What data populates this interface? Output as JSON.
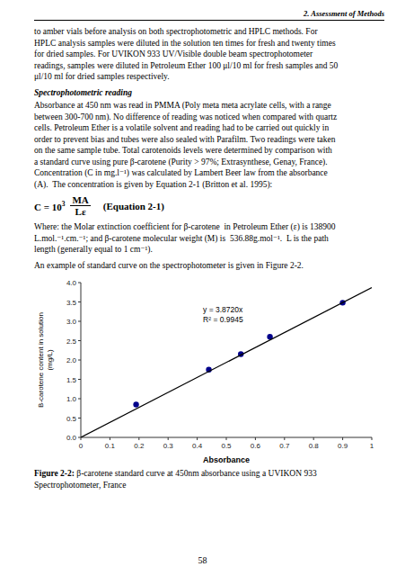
{
  "header": "2. Assessment of Methods",
  "para1": "to amber vials before analysis on both spectrophotometric and HPLC methods. For\nHPLC analysis samples were diluted in the solution ten times for fresh and twenty times\nfor dried samples. For UVIKON 933 UV/Visible double beam spectrophotometer\nreadings, samples were diluted in Petroleum Ether 100 μl/10 ml for fresh samples and 50\nμl/10 ml for dried samples respectively.",
  "section_title": "Spectrophotometric reading",
  "para2": "Absorbance at 450 nm was read in PMMA (Poly meta meta acrylate cells, with a range\nbetween 300-700 nm). No difference of reading was noticed when compared with quartz\ncells. Petroleum Ether is a volatile solvent and reading had to be carried out quickly in\norder to prevent bias and tubes were also sealed with Parafilm. Two readings were taken\non the same sample tube. Total carotenoids levels were determined by comparison with\na standard curve using pure β-carotene (Purity > 97%; Extrasynthese, Genay, France).\nConcentration (C in mg.l⁻¹) was calculated by Lambert Beer law from the absorbance\n(A).  The concentration is given by Equation 2-1 (Britton et al. 1995):",
  "equation": {
    "lhs": "C = 10",
    "sup": "3",
    "num": "MA",
    "den": "Lε",
    "label": "(Equation 2-1)"
  },
  "para3": "Where: the Molar extinction coefficient for β-carotene  in Petroleum Ether (ε) is 138900\nL.mol.⁻¹.cm.⁻¹; and β-carotene molecular weight (M) is  536.88g.mol⁻¹.  L is the path\nlength (generally equal to 1 cm⁻¹).",
  "para4": "An example of standard curve on the spectrophotometer is given in Figure 2-2.",
  "caption": "Figure 2-2: β-carotene standard curve at 450nm absorbance using a UVIKON 933\nSpectrophotometer, France",
  "page_number": "58",
  "chart_data": {
    "type": "scatter",
    "xlabel": "Absorbance",
    "ylabel": "B-carotene content in solution\n(mg/L)",
    "series": [
      {
        "type": "scatter",
        "color": "#00008B",
        "marker": "circle",
        "x": [
          0.19,
          0.44,
          0.55,
          0.65,
          0.9
        ],
        "values": [
          0.85,
          1.75,
          2.15,
          2.6,
          3.48
        ]
      },
      {
        "type": "line",
        "color": "#000000",
        "line_style": "solid",
        "x": [
          0,
          1
        ],
        "values": [
          0,
          3.872
        ]
      }
    ],
    "annotations": [
      "y = 3.8720x",
      "R² = 0.9945"
    ],
    "xlim": [
      0,
      1
    ],
    "ylim": [
      0,
      4
    ],
    "xticks": [
      0,
      0.1,
      0.2,
      0.3,
      0.4,
      0.5,
      0.6,
      0.7,
      0.8,
      0.9,
      1
    ],
    "yticks": [
      {
        "value": 0,
        "label": "0.0"
      },
      0.5,
      {
        "value": 1,
        "label": "1.0"
      },
      1.5,
      {
        "value": 2,
        "label": "2.0"
      },
      2.5,
      {
        "value": 3,
        "label": "3.0"
      },
      3.5,
      {
        "value": 4,
        "label": "4.0"
      }
    ],
    "grid": false
  }
}
